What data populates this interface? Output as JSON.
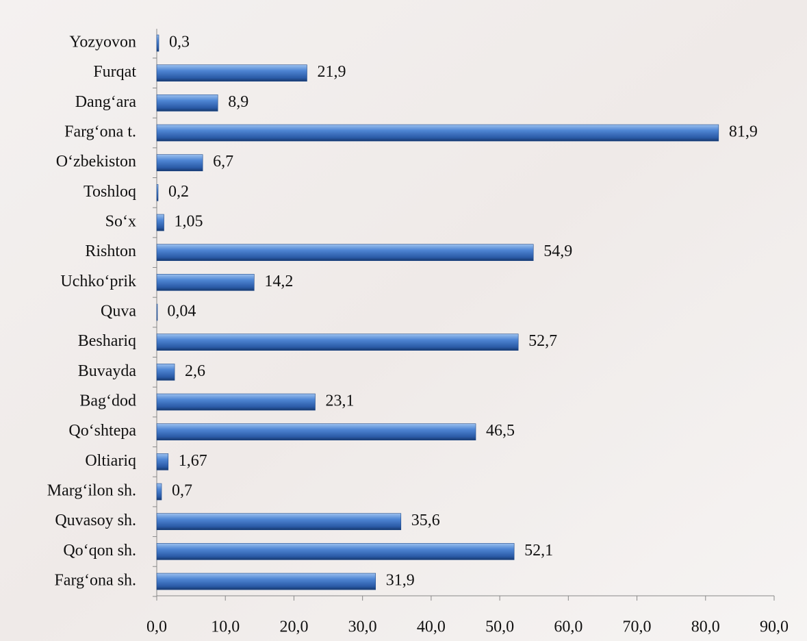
{
  "chart_data": {
    "type": "bar",
    "orientation": "horizontal",
    "color": "#3a6fc0",
    "categories": [
      "Yozyovon",
      "Furqat",
      "Dang‘ara",
      "Farg‘ona t.",
      "O‘zbekiston",
      "Toshloq",
      "So‘x",
      "Rishton",
      "Uchko‘prik",
      "Quva",
      "Beshariq",
      "Buvayda",
      "Bag‘dod",
      "Qo‘shtepa",
      "Oltiariq",
      "Marg‘ilon sh.",
      "Quvasoy sh.",
      "Qo‘qon sh.",
      "Farg‘ona sh."
    ],
    "values": [
      0.3,
      21.9,
      8.9,
      81.9,
      6.7,
      0.2,
      1.05,
      54.9,
      14.2,
      0.04,
      52.7,
      2.6,
      23.1,
      46.5,
      1.67,
      0.7,
      35.6,
      52.1,
      31.9
    ],
    "value_labels": [
      "0,3",
      "21,9",
      "8,9",
      "81,9",
      "6,7",
      "0,2",
      "1,05",
      "54,9",
      "14,2",
      "0,04",
      "52,7",
      "2,6",
      "23,1",
      "46,5",
      "1,67",
      "0,7",
      "35,6",
      "52,1",
      "31,9"
    ],
    "xlim": [
      0,
      90
    ],
    "xticks": [
      {
        "value": 0,
        "label": "0,0"
      },
      {
        "value": 10,
        "label": "10,0"
      },
      {
        "value": 20,
        "label": "20,0"
      },
      {
        "value": 30,
        "label": "30,0"
      },
      {
        "value": 40,
        "label": "40,0"
      },
      {
        "value": 50,
        "label": "50,0"
      },
      {
        "value": 60,
        "label": "60,0"
      },
      {
        "value": 70,
        "label": "70,0"
      },
      {
        "value": 80,
        "label": "80,0"
      },
      {
        "value": 90,
        "label": "90,0"
      }
    ]
  }
}
